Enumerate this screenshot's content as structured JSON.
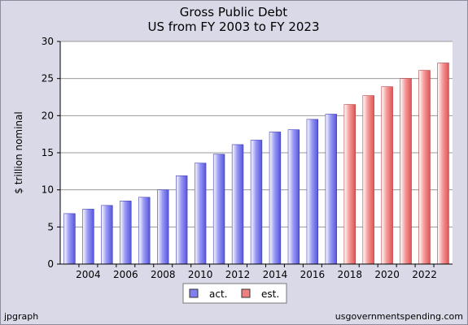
{
  "chart_data": {
    "type": "bar",
    "title": "Gross Public Debt",
    "subtitle": "US from FY 2003 to FY 2023",
    "ylabel": "$ trillion nominal",
    "xlabel": "",
    "ylim": [
      0,
      30
    ],
    "yticks": [
      0,
      5,
      10,
      15,
      20,
      25,
      30
    ],
    "xtick_labels": [
      "2004",
      "2006",
      "2008",
      "2010",
      "2012",
      "2014",
      "2016",
      "2018",
      "2020",
      "2022"
    ],
    "grid": true,
    "legend_position": "bottom-center",
    "categories": [
      "2003",
      "2004",
      "2005",
      "2006",
      "2007",
      "2008",
      "2009",
      "2010",
      "2011",
      "2012",
      "2013",
      "2014",
      "2015",
      "2016",
      "2017",
      "2018",
      "2019",
      "2020",
      "2021",
      "2022",
      "2023"
    ],
    "series": [
      {
        "name": "act.",
        "color": "#8080f0",
        "values": [
          6.8,
          7.4,
          7.9,
          8.5,
          9.0,
          10.0,
          11.9,
          13.6,
          14.8,
          16.1,
          16.7,
          17.8,
          18.1,
          19.5,
          20.2,
          null,
          null,
          null,
          null,
          null,
          null
        ]
      },
      {
        "name": "est.",
        "color": "#f08080",
        "values": [
          null,
          null,
          null,
          null,
          null,
          null,
          null,
          null,
          null,
          null,
          null,
          null,
          null,
          null,
          null,
          21.5,
          22.7,
          23.9,
          25.0,
          26.1,
          27.1
        ]
      }
    ]
  },
  "footer": {
    "left": "jpgraph",
    "right": "usgovernmentspending.com"
  }
}
